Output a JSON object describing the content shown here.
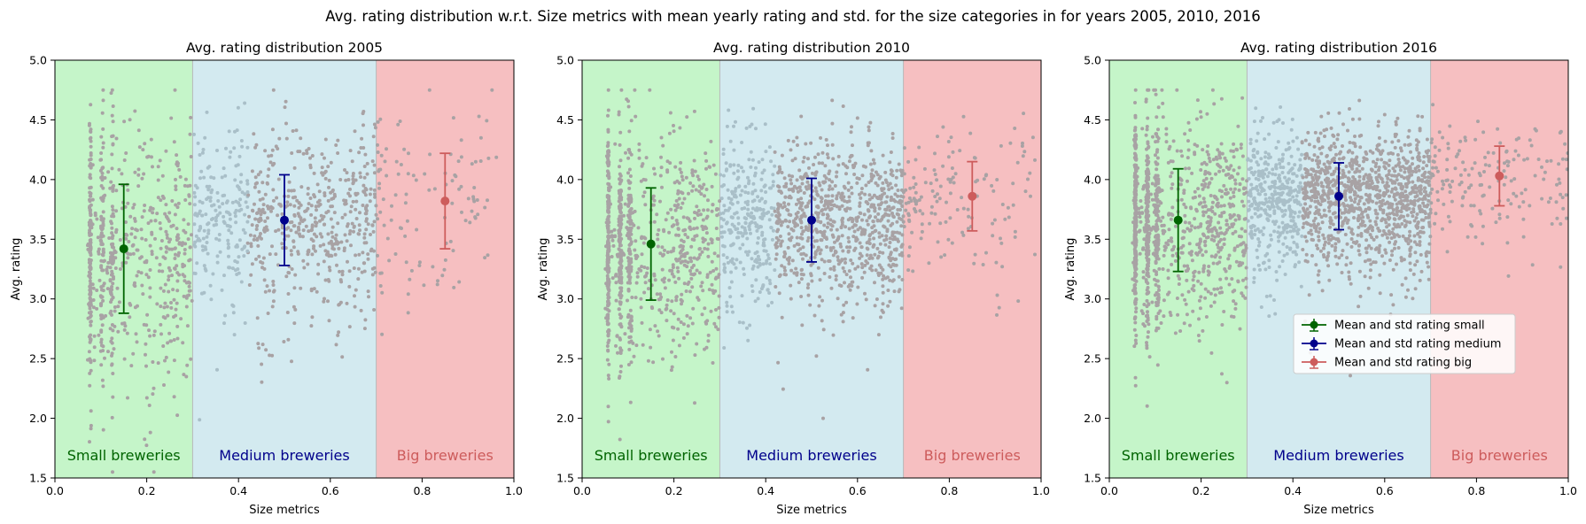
{
  "figure": {
    "suptitle": "Avg. rating distribution w.r.t. Size metrics with mean yearly rating and std. for the size categories in for years 2005, 2010, 2016"
  },
  "colors": {
    "small_band": "#c5f5c9",
    "medium_band": "#d3eaf0",
    "big_band": "#f6bfc1",
    "scatter_point": "#a8a2a4",
    "scatter_point_medium": "#a9bfc8",
    "small": "#006400",
    "medium": "#00008b",
    "big": "#cd5c5c"
  },
  "legend": {
    "placement": "center-right (third panel)",
    "entries": [
      {
        "label": "Mean and std rating small",
        "color": "#006400"
      },
      {
        "label": "Mean and std rating medium",
        "color": "#00008b"
      },
      {
        "label": "Mean and std rating big",
        "color": "#cd5c5c"
      }
    ]
  },
  "chart_data": [
    {
      "type": "scatter",
      "title": "Avg. rating distribution 2005",
      "xlabel": "Size metrics",
      "ylabel": "Avg. rating",
      "xlim": [
        0.0,
        1.0
      ],
      "ylim": [
        1.5,
        5.0
      ],
      "xticks": [
        "0.0",
        "0.2",
        "0.4",
        "0.6",
        "0.8",
        "1.0"
      ],
      "yticks": [
        "1.5",
        "2.0",
        "2.5",
        "3.0",
        "3.5",
        "4.0",
        "4.5",
        "5.0"
      ],
      "bands": [
        {
          "label": "Small breweries",
          "x0": 0.0,
          "x1": 0.3
        },
        {
          "label": "Medium breweries",
          "x0": 0.3,
          "x1": 0.7
        },
        {
          "label": "Big breweries",
          "x0": 0.7,
          "x1": 1.0
        }
      ],
      "mean_std": [
        {
          "series": "small",
          "x": 0.15,
          "mean": 3.42,
          "std": 0.54
        },
        {
          "series": "medium",
          "x": 0.5,
          "mean": 3.66,
          "std": 0.38
        },
        {
          "series": "big",
          "x": 0.85,
          "mean": 3.82,
          "std": 0.4
        }
      ],
      "scatter_approx": {
        "small": [
          0.07,
          0.3,
          3.42,
          0.54
        ],
        "medium": [
          0.3,
          0.7,
          3.66,
          0.38
        ],
        "big": [
          0.7,
          0.97,
          3.82,
          0.4
        ]
      }
    },
    {
      "type": "scatter",
      "title": "Avg. rating distribution 2010",
      "xlabel": "Size metrics",
      "ylabel": "Avg. rating",
      "xlim": [
        0.0,
        1.0
      ],
      "ylim": [
        1.5,
        5.0
      ],
      "xticks": [
        "0.0",
        "0.2",
        "0.4",
        "0.6",
        "0.8",
        "1.0"
      ],
      "yticks": [
        "1.5",
        "2.0",
        "2.5",
        "3.0",
        "3.5",
        "4.0",
        "4.5",
        "5.0"
      ],
      "bands": [
        {
          "label": "Small breweries",
          "x0": 0.0,
          "x1": 0.3
        },
        {
          "label": "Medium breweries",
          "x0": 0.3,
          "x1": 0.7
        },
        {
          "label": "Big breweries",
          "x0": 0.7,
          "x1": 1.0
        }
      ],
      "mean_std": [
        {
          "series": "small",
          "x": 0.15,
          "mean": 3.46,
          "std": 0.47
        },
        {
          "series": "medium",
          "x": 0.5,
          "mean": 3.66,
          "std": 0.35
        },
        {
          "series": "big",
          "x": 0.85,
          "mean": 3.86,
          "std": 0.29
        }
      ],
      "scatter_approx": {
        "small": [
          0.05,
          0.3,
          3.46,
          0.47
        ],
        "medium": [
          0.3,
          0.7,
          3.66,
          0.35
        ],
        "big": [
          0.7,
          0.99,
          3.86,
          0.29
        ]
      }
    },
    {
      "type": "scatter",
      "title": "Avg. rating distribution 2016",
      "xlabel": "Size metrics",
      "ylabel": "Avg. rating",
      "xlim": [
        0.0,
        1.0
      ],
      "ylim": [
        1.5,
        5.0
      ],
      "xticks": [
        "0.0",
        "0.2",
        "0.4",
        "0.6",
        "0.8",
        "1.0"
      ],
      "yticks": [
        "1.5",
        "2.0",
        "2.5",
        "3.0",
        "3.5",
        "4.0",
        "4.5",
        "5.0"
      ],
      "bands": [
        {
          "label": "Small breweries",
          "x0": 0.0,
          "x1": 0.3
        },
        {
          "label": "Medium breweries",
          "x0": 0.3,
          "x1": 0.7
        },
        {
          "label": "Big breweries",
          "x0": 0.7,
          "x1": 1.0
        }
      ],
      "mean_std": [
        {
          "series": "small",
          "x": 0.15,
          "mean": 3.66,
          "std": 0.43
        },
        {
          "series": "medium",
          "x": 0.5,
          "mean": 3.86,
          "std": 0.28
        },
        {
          "series": "big",
          "x": 0.85,
          "mean": 4.03,
          "std": 0.25
        }
      ],
      "scatter_approx": {
        "small": [
          0.05,
          0.3,
          3.66,
          0.43
        ],
        "medium": [
          0.3,
          0.7,
          3.86,
          0.28
        ],
        "big": [
          0.7,
          1.0,
          4.03,
          0.25
        ]
      }
    }
  ]
}
